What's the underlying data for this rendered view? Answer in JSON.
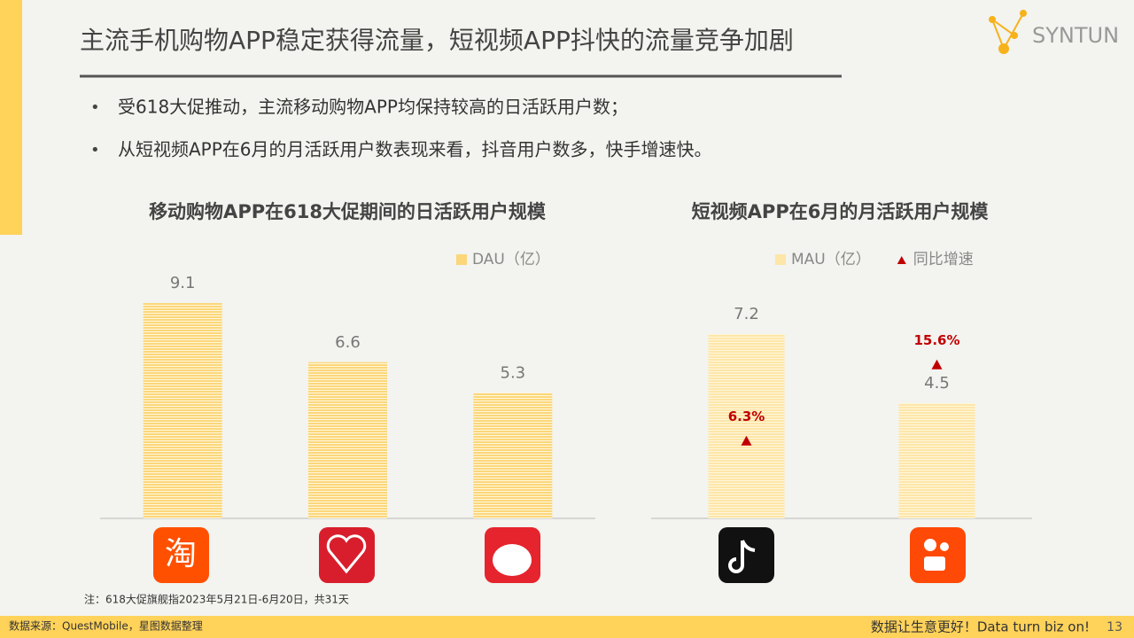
{
  "header": {
    "title": "主流手机购物APP稳定获得流量，短视频APP抖快的流量竞争加剧",
    "logo": "SYNTUN"
  },
  "bullets": [
    "受618大促推动，主流移动购物APP均保持较高的日活跃用户数；",
    "从短视频APP在6月的月活跃用户数表现来看，抖音用户数多，快手增速快。"
  ],
  "note": "注：618大促旗舰指2023年5月21日-6月20日，共31天",
  "footer": {
    "source": "数据来源：QuestMobile，星图数据整理",
    "slogan": "数据让生意更好！Data turn biz on!",
    "page": "13"
  },
  "chart_data": [
    {
      "type": "bar",
      "title": "移动购物APP在618大促期间的日活跃用户规模",
      "categories": [
        null,
        null,
        null
      ],
      "series": [
        {
          "name": "DAU（亿）",
          "color": "#fbd77a",
          "values": [
            9.1,
            6.6,
            5.3
          ]
        }
      ]
    },
    {
      "type": "bar",
      "title": "短视频APP在6月的月活跃用户规模",
      "categories": [
        null,
        null
      ],
      "series": [
        {
          "name": "MAU（亿）",
          "color": "#fde6a8",
          "values": [
            7.2,
            4.5
          ]
        },
        {
          "name": "同比增速",
          "color": "#c00000",
          "axis": "y2",
          "values": [
            6.3,
            15.6
          ],
          "value_labels": [
            "6.3%",
            "15.6%"
          ]
        }
      ]
    }
  ]
}
